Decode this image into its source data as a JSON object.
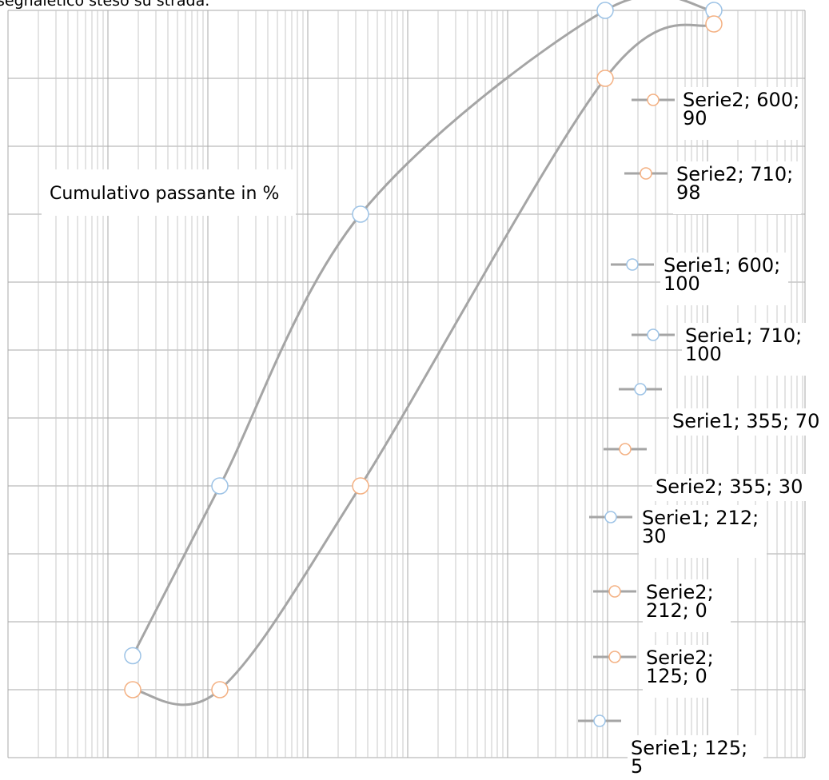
{
  "caption": "segnaletico steso su strada.",
  "chart_data": {
    "type": "line",
    "ylabel": "Cumulativo passante in %",
    "xscale": "log",
    "x": [
      125,
      212,
      355,
      600,
      710
    ],
    "ylim": [
      -5,
      105
    ],
    "series": [
      {
        "name": "Serie1",
        "color": "#9dc3e6",
        "values": [
          5,
          30,
          70,
          100,
          100
        ]
      },
      {
        "name": "Serie2",
        "color": "#f4b183",
        "values": [
          0,
          0,
          30,
          90,
          98
        ]
      }
    ],
    "data_labels": [
      {
        "series": "Serie2",
        "lines": [
          "Serie2; 600;",
          "90"
        ]
      },
      {
        "series": "Serie2",
        "lines": [
          "Serie2; 710;",
          "98"
        ]
      },
      {
        "series": "Serie1",
        "lines": [
          "Serie1; 600;",
          "100"
        ]
      },
      {
        "series": "Serie1",
        "lines": [
          "Serie1; 710;",
          "100"
        ]
      },
      {
        "series": "Serie1",
        "lines": [
          "Serie1; 355; 70"
        ]
      },
      {
        "series": "Serie2",
        "lines": [
          "Serie2; 355; 30"
        ]
      },
      {
        "series": "Serie1",
        "lines": [
          "Serie1; 212;",
          "30"
        ]
      },
      {
        "series": "Serie2",
        "lines": [
          "Serie2;",
          "212; 0"
        ]
      },
      {
        "series": "Serie2",
        "lines": [
          "Serie2;",
          "125; 0"
        ]
      },
      {
        "series": "Serie1",
        "lines": [
          "Serie1; 125;",
          "5"
        ]
      }
    ]
  }
}
